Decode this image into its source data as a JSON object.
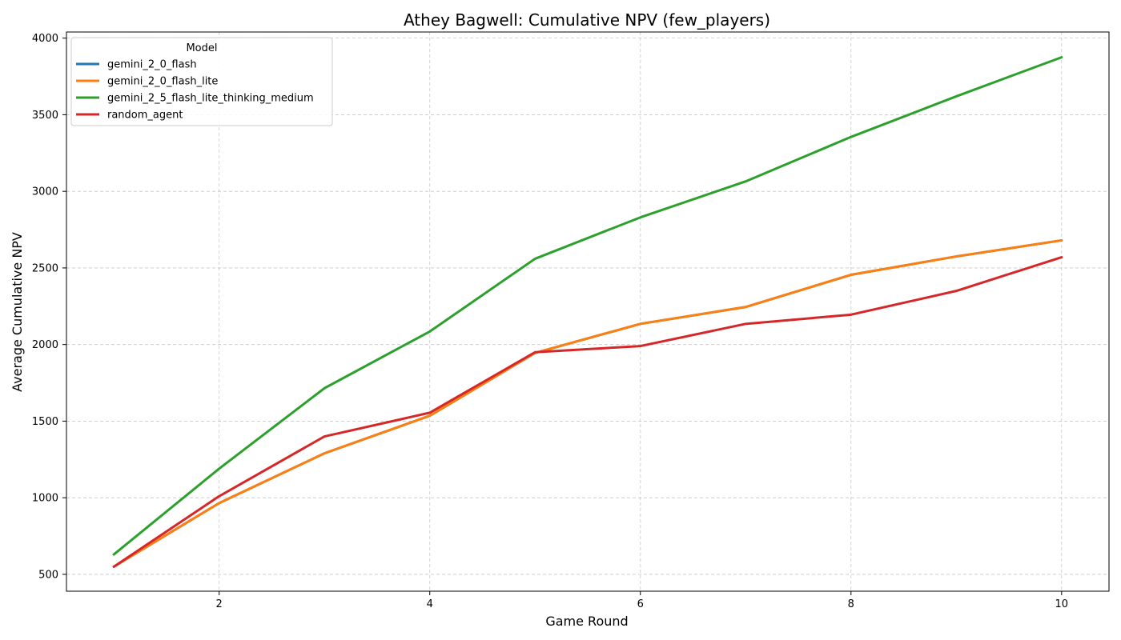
{
  "chart_data": {
    "type": "line",
    "title": "Athey Bagwell: Cumulative NPV (few_players)",
    "xlabel": "Game Round",
    "ylabel": "Average Cumulative NPV",
    "xlim": [
      0.55,
      10.45
    ],
    "ylim": [
      390,
      4040
    ],
    "x_ticks": [
      2,
      4,
      6,
      8,
      10
    ],
    "y_ticks": [
      500,
      1000,
      1500,
      2000,
      2500,
      3000,
      3500,
      4000
    ],
    "grid": true,
    "legend": {
      "title": "Model",
      "placement": "top-left"
    },
    "x": [
      1,
      2,
      3,
      4,
      5,
      6,
      7,
      8,
      9,
      10
    ],
    "series": [
      {
        "name": "gemini_2_0_flash",
        "color": "#1f77b4",
        "values": [
          550,
          965,
          1290,
          1535,
          1945,
          2135,
          2245,
          2455,
          2575,
          2680
        ]
      },
      {
        "name": "gemini_2_0_flash_lite",
        "color": "#ff7f0e",
        "values": [
          550,
          965,
          1290,
          1535,
          1945,
          2135,
          2245,
          2455,
          2575,
          2680
        ]
      },
      {
        "name": "gemini_2_5_flash_lite_thinking_medium",
        "color": "#2ca02c",
        "values": [
          630,
          1190,
          1715,
          2085,
          2560,
          2830,
          3065,
          3355,
          3620,
          3875
        ]
      },
      {
        "name": "random_agent",
        "color": "#d62728",
        "values": [
          550,
          1010,
          1400,
          1555,
          1950,
          1990,
          2135,
          2195,
          2350,
          2570
        ]
      }
    ]
  }
}
